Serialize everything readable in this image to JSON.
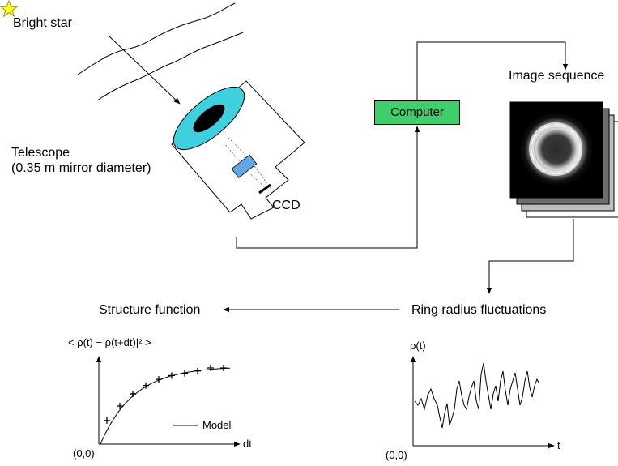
{
  "labels": {
    "bright_star": "Bright star",
    "telescope_line1": "Telescope",
    "telescope_line2": "(0.35 m mirror diameter)",
    "ccd": "CCD",
    "computer": "Computer",
    "image_sequence": "Image sequence",
    "structure_function": "Structure function",
    "ring_radius_fluctuations": "Ring radius fluctuations"
  },
  "structure_plot": {
    "y_label": "< ρ(t) − ρ(t+dt)|² >",
    "x_label": "dt",
    "origin": "(0,0)",
    "legend": "Model",
    "points": [
      {
        "x": 1,
        "y": 0.31
      },
      {
        "x": 2,
        "y": 0.5
      },
      {
        "x": 3,
        "y": 0.66
      },
      {
        "x": 4,
        "y": 0.77
      },
      {
        "x": 5,
        "y": 0.85
      },
      {
        "x": 6,
        "y": 0.9
      },
      {
        "x": 7,
        "y": 0.93
      },
      {
        "x": 8,
        "y": 0.96
      },
      {
        "x": 9,
        "y": 1.0
      },
      {
        "x": 10,
        "y": 1.0
      }
    ]
  },
  "radius_plot": {
    "y_label": "ρ(t)",
    "x_label": "t",
    "origin": "(0,0)"
  },
  "colors": {
    "mirror": "#3fd0df",
    "computer_box": "#3fce6c",
    "star": "#ffff33",
    "ccd_optic": "#62a8e6"
  },
  "icons": {
    "star": "star-icon"
  }
}
